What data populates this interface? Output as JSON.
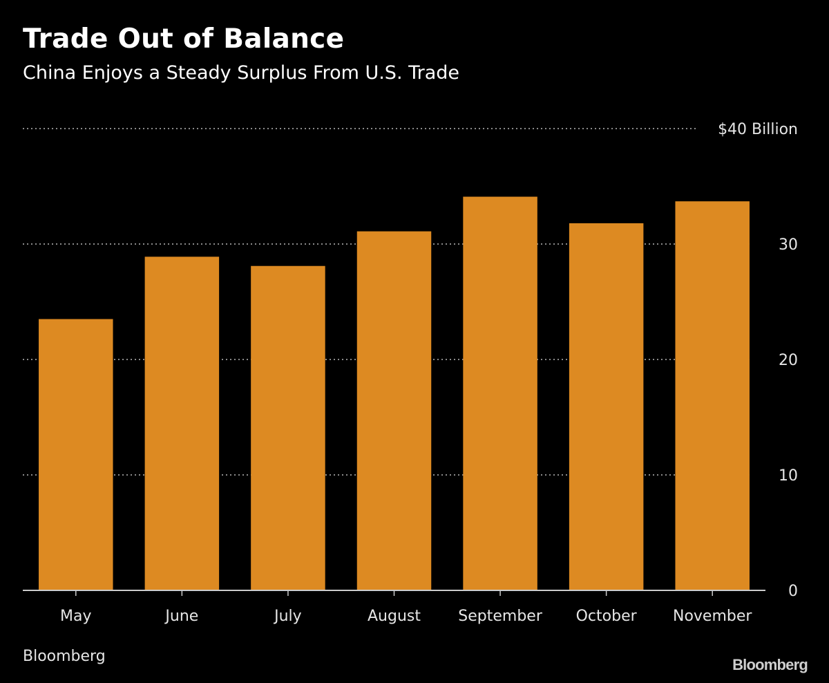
{
  "header": {
    "title": "Trade Out of Balance",
    "subtitle": "China Enjoys a Steady Surplus From U.S. Trade"
  },
  "footer": {
    "source": "Bloomberg",
    "logo": "Bloomberg"
  },
  "colors": {
    "background": "#000000",
    "bar": "#dd8a22",
    "gridline": "#8c8c8c",
    "axis": "#cccccc",
    "text": "#e6e6e6"
  },
  "chart_data": {
    "type": "bar",
    "categories": [
      "May",
      "June",
      "July",
      "August",
      "September",
      "October",
      "November"
    ],
    "values": [
      23.5,
      28.9,
      28.1,
      31.1,
      34.1,
      31.8,
      33.7
    ],
    "title": "Trade Out of Balance",
    "subtitle": "China Enjoys a Steady Surplus From U.S. Trade",
    "xlabel": "",
    "ylabel": "",
    "ylim": [
      0,
      40
    ],
    "yticks": [
      0,
      10,
      20,
      30,
      40
    ],
    "ytick_labels": [
      "0",
      "10",
      "20",
      "30",
      "$40 Billion"
    ],
    "y_axis_position": "right",
    "grid": true,
    "legend": "none"
  }
}
